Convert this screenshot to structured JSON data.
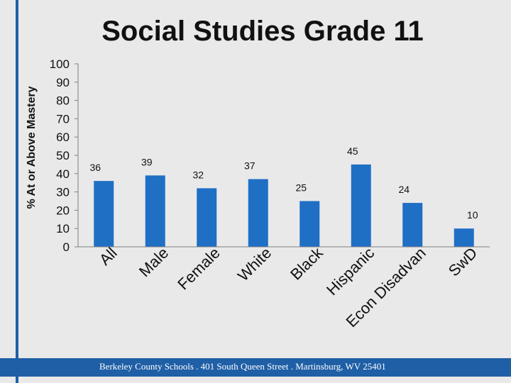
{
  "title": "Social Studies Grade 11",
  "footer": {
    "text": "Berkeley County Schools . 401 South Queen Street . Martinsburg, WV  25401"
  },
  "colors": {
    "bar": "#1f6fc5",
    "accent": "#1f5fa6"
  },
  "chart_data": {
    "type": "bar",
    "title": "Social Studies Grade 11",
    "xlabel": "",
    "ylabel": "% At or Above Mastery",
    "ylim": [
      0,
      100
    ],
    "yticks": [
      0,
      10,
      20,
      30,
      40,
      50,
      60,
      70,
      80,
      90,
      100
    ],
    "categories": [
      "All",
      "Male",
      "Female",
      "White",
      "Black",
      "Hispanic",
      "Econ Disadvan",
      "SwD"
    ],
    "values": [
      36,
      39,
      32,
      37,
      25,
      45,
      24,
      10
    ],
    "data_labels": [
      "36",
      "39",
      "32",
      "37",
      "25",
      "45",
      "24",
      "10"
    ],
    "grid": false,
    "legend": "none"
  }
}
